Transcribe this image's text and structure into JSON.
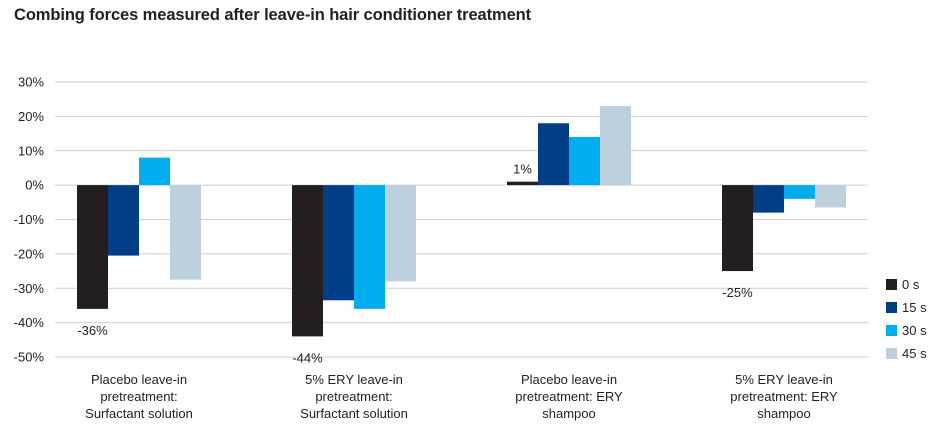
{
  "chart_data": {
    "type": "bar",
    "title": "Combing forces measured after leave-in hair conditioner treatment",
    "xlabel": "",
    "ylabel": "",
    "ylim": [
      -50,
      30
    ],
    "yticks": [
      30,
      20,
      10,
      0,
      -10,
      -20,
      -30,
      -40,
      -50
    ],
    "ytick_labels": [
      "30%",
      "20%",
      "10%",
      "0%",
      "-10%",
      "-20%",
      "-30%",
      "-40%",
      "-50%"
    ],
    "grid": true,
    "legend_position": "right",
    "categories": [
      [
        "Placebo leave-in",
        "pretreatment:",
        "Surfactant solution"
      ],
      [
        "5% ERY leave-in",
        "pretreatment:",
        "Surfactant solution"
      ],
      [
        "Placebo leave-in",
        "pretreatment: ERY",
        "shampoo"
      ],
      [
        "5% ERY leave-in",
        "pretreatment: ERY",
        "shampoo"
      ]
    ],
    "series": [
      {
        "name": "0 s",
        "color": "#231f20",
        "values": [
          -36,
          -44,
          1,
          -25
        ]
      },
      {
        "name": "15 s",
        "color": "#003f87",
        "values": [
          -20.5,
          -33.5,
          18,
          -8
        ]
      },
      {
        "name": "30 s",
        "color": "#00aeef",
        "values": [
          8,
          -36,
          14,
          -4
        ]
      },
      {
        "name": "45 s",
        "color": "#bdd1dc",
        "values": [
          -27.5,
          -28,
          23,
          -6.5
        ]
      }
    ],
    "data_labels": [
      {
        "series": 0,
        "category": 0,
        "text": "-36%"
      },
      {
        "series": 0,
        "category": 1,
        "text": "-44%"
      },
      {
        "series": 0,
        "category": 2,
        "text": "1%"
      },
      {
        "series": 0,
        "category": 3,
        "text": "-25%"
      }
    ]
  }
}
